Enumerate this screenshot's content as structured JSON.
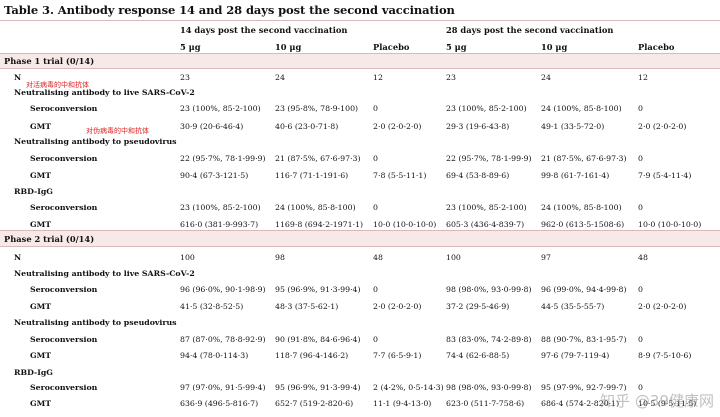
{
  "title": "Table 3. Antibody response 14 and 28 days post the second vaccination",
  "header": {
    "group14": "14 days post the second vaccination",
    "group28": "28 days post the second vaccination",
    "col_5ug": "5 μg",
    "col_10ug": "10 μg",
    "col_placebo": "Placebo"
  },
  "phase1": {
    "label": "Phase 1 trial (0/14)",
    "n": [
      "N",
      "23",
      "24",
      "12",
      "23",
      "24",
      "12"
    ],
    "live_title": "Neutralising antibody to live SARS-CoV-2",
    "live_sero": [
      "Seroconversion",
      "23 (100%, 85·2-100)",
      "23 (95·8%, 78·9-100)",
      "0",
      "23 (100%, 85·2-100)",
      "24 (100%, 85·8-100)",
      "0"
    ],
    "live_gmt": [
      "GMT",
      "30·9 (20·6-46·4)",
      "40·6 (23·0-71·8)",
      "2·0 (2·0-2·0)",
      "29·3 (19·6-43·8)",
      "49·1 (33·5-72·0)",
      "2·0 (2·0-2·0)"
    ],
    "pseudo_title": "Neutralising antibody to pseudovirus",
    "pseudo_sero": [
      "Seroconversion",
      "22 (95·7%, 78·1-99·9)",
      "21 (87·5%, 67·6-97·3)",
      "0",
      "22 (95·7%, 78·1-99·9)",
      "21 (87·5%, 67·6-97·3)",
      "0"
    ],
    "pseudo_gmt": [
      "GMT",
      "90·4 (67·3-121·5)",
      "116·7 (71·1-191·6)",
      "7·8 (5·5-11·1)",
      "69·4 (53·8-89·6)",
      "99·8 (61·7-161·4)",
      "7·9 (5·4-11·4)"
    ],
    "rbd_title": "RBD-IgG",
    "rbd_sero": [
      "Seroconversion",
      "23 (100%, 85·2-100)",
      "24 (100%, 85·8-100)",
      "0",
      "23 (100%, 85·2-100)",
      "24 (100%, 85·8-100)",
      "0"
    ],
    "rbd_gmt": [
      "GMT",
      "616·0 (381·9-993·7)",
      "1169·8 (694·2-1971·1)",
      "10·0 (10·0-10·0)",
      "605·3 (436·4-839·7)",
      "962·0 (613·5-1508·6)",
      "10·0 (10·0-10·0)"
    ],
    "note_live": "对活病毒的中和抗体",
    "note_pseudo": "对伪病毒的中和抗体"
  },
  "phase2": {
    "label": "Phase 2 trial (0/14)",
    "n": [
      "N",
      "100",
      "98",
      "48",
      "100",
      "97",
      "48"
    ],
    "live_title": "Neutralising antibody to live SARS-CoV-2",
    "live_sero": [
      "Seroconversion",
      "96 (96·0%, 90·1-98·9)",
      "95 (96·9%, 91·3-99·4)",
      "0",
      "98 (98·0%, 93·0-99·8)",
      "96 (99·0%, 94·4-99·8)",
      "0"
    ],
    "live_gmt": [
      "GMT",
      "41·5 (32·8-52·5)",
      "48·3 (37·5-62·1)",
      "2·0 (2·0-2·0)",
      "37·2 (29·5-46·9)",
      "44·5 (35·5-55·7)",
      "2·0 (2·0-2·0)"
    ],
    "pseudo_title": "Neutralising antibody to pseudovirus",
    "pseudo_sero": [
      "Seroconversion",
      "87 (87·0%, 78·8-92·9)",
      "90 (91·8%, 84·6-96·4)",
      "0",
      "83 (83·0%, 74·2-89·8)",
      "88 (90·7%, 83·1-95·7)",
      "0"
    ],
    "pseudo_gmt": [
      "GMT",
      "94·4 (78·0-114·3)",
      "118·7 (96·4-146·2)",
      "7·7 (6·5-9·1)",
      "74·4 (62·6-88·5)",
      "97·6 (79·7-119·4)",
      "8·9 (7·5-10·6)"
    ],
    "rbd_title": "RBD-IgG",
    "rbd_sero": [
      "Seroconversion",
      "97 (97·0%, 91·5-99·4)",
      "95 (96·9%, 91·3-99·4)",
      "2 (4·2%, 0·5-14·3)",
      "98 (98·0%, 93·0-99·8)",
      "95 (97·9%, 92·7-99·7)",
      "0"
    ],
    "rbd_gmt": [
      "GMT",
      "636·9 (496·5-816·7)",
      "652·7 (519·2-820·6)",
      "11·1 (9·4-13·0)",
      "623·0 (511·7-758·6)",
      "686·4 (574·2-820·1)",
      "10·5 (9·5-11·5)"
    ]
  },
  "watermark": "知乎 @39健康网"
}
